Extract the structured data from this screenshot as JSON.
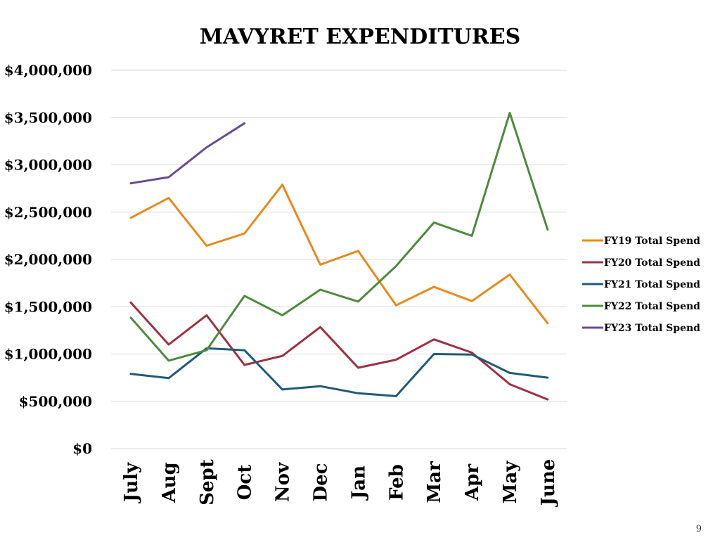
{
  "page_number": "9",
  "chart_data": {
    "type": "line",
    "title": "MAVYRET EXPENDITURES",
    "xlabel": "",
    "ylabel": "",
    "categories": [
      "July",
      "Aug",
      "Sept",
      "Oct",
      "Nov",
      "Dec",
      "Jan",
      "Feb",
      "Mar",
      "Apr",
      "May",
      "June"
    ],
    "ylim": [
      0,
      4000000
    ],
    "yticks": [
      0,
      500000,
      1000000,
      1500000,
      2000000,
      2500000,
      3000000,
      3500000,
      4000000
    ],
    "ytick_labels": [
      "$0",
      "$500,000",
      "$1,000,000",
      "$1,500,000",
      "$2,000,000",
      "$2,500,000",
      "$3,000,000",
      "$3,500,000",
      "$4,000,000"
    ],
    "grid": true,
    "legend_position": "right",
    "series": [
      {
        "name": "FY19 Total Spend",
        "color": "#E8891C",
        "values": [
          2440000,
          2650000,
          2145000,
          2275000,
          2790000,
          1945000,
          2090000,
          1515000,
          1710000,
          1560000,
          1840000,
          1325000
        ]
      },
      {
        "name": "FY20 Total Spend",
        "color": "#A0303F",
        "values": [
          1545000,
          1100000,
          1410000,
          885000,
          980000,
          1285000,
          855000,
          940000,
          1155000,
          1015000,
          680000,
          520000
        ]
      },
      {
        "name": "FY21 Total Spend",
        "color": "#205A7A",
        "values": [
          790000,
          745000,
          1060000,
          1040000,
          625000,
          660000,
          585000,
          555000,
          1000000,
          995000,
          800000,
          750000
        ]
      },
      {
        "name": "FY22 Total Spend",
        "color": "#4E8A3E",
        "values": [
          1385000,
          930000,
          1040000,
          1615000,
          1410000,
          1680000,
          1555000,
          1930000,
          2390000,
          2250000,
          3550000,
          2315000
        ]
      },
      {
        "name": "FY23 Total Spend",
        "color": "#6A4C93",
        "values": [
          2805000,
          2870000,
          3185000,
          3440000,
          null,
          null,
          null,
          null,
          null,
          null,
          null,
          null
        ]
      }
    ]
  }
}
